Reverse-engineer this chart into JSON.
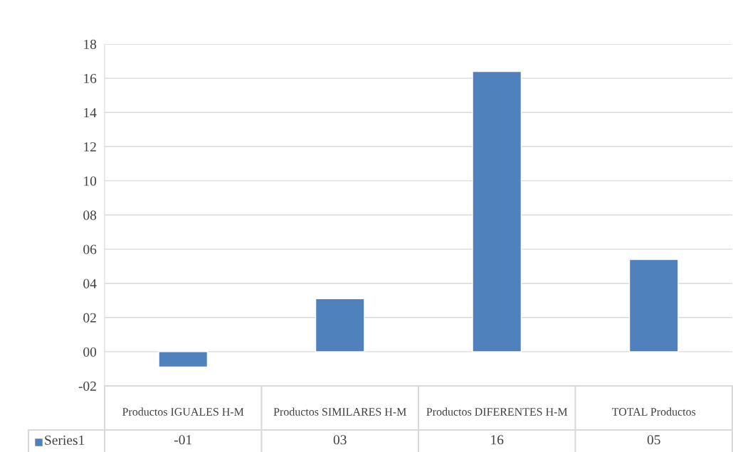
{
  "chart_data": {
    "type": "bar",
    "categories": [
      "Productos IGUALES H-M",
      "Productos SIMILARES H-M",
      "Productos DIFERENTES H-M",
      "TOTAL Productos"
    ],
    "series": [
      {
        "name": "Series1",
        "color": "#4f81bd",
        "values": [
          -0.9,
          3.1,
          16.4,
          5.4
        ],
        "value_labels": [
          "-01",
          "03",
          "16",
          "05"
        ]
      }
    ],
    "ylim": [
      -2,
      18
    ],
    "yticks": [
      {
        "value": -2,
        "label": "-02"
      },
      {
        "value": 0,
        "label": "00"
      },
      {
        "value": 2,
        "label": "02"
      },
      {
        "value": 4,
        "label": "04"
      },
      {
        "value": 6,
        "label": "06"
      },
      {
        "value": 8,
        "label": "08"
      },
      {
        "value": 10,
        "label": "10"
      },
      {
        "value": 12,
        "label": "12"
      },
      {
        "value": 14,
        "label": "14"
      },
      {
        "value": 16,
        "label": "16"
      },
      {
        "value": 18,
        "label": "18"
      }
    ],
    "grid": "y",
    "legend": "bottom"
  }
}
